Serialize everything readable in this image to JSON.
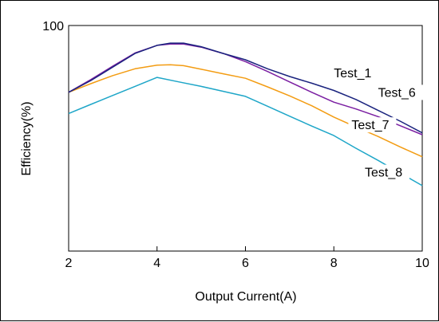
{
  "chart_data": {
    "type": "line",
    "title": "",
    "xlabel": "Output Current(A)",
    "ylabel": "Efficiency(%)",
    "xlim": [
      2,
      10
    ],
    "ylim": [
      50,
      100
    ],
    "x_ticks": [
      "2",
      "4",
      "6",
      "8",
      "10"
    ],
    "y_ticks": [
      "100"
    ],
    "grid": false,
    "series": [
      {
        "name": "Test_1",
        "color": "#1a237e",
        "x": [
          2,
          2.5,
          3,
          3.5,
          4,
          4.3,
          4.6,
          5,
          5.5,
          6,
          6.5,
          7,
          7.5,
          8,
          8.5,
          9,
          9.5,
          10
        ],
        "y": [
          85.2,
          87.8,
          90.8,
          93.8,
          95.6,
          96.1,
          96.1,
          95.3,
          93.8,
          92.4,
          90.4,
          88.7,
          87.2,
          85.6,
          83.6,
          81.2,
          78.8,
          76.2
        ]
      },
      {
        "name": "Test_6",
        "color": "#7b1fa2",
        "x": [
          2,
          2.5,
          3,
          3.5,
          4,
          4.3,
          4.6,
          5,
          5.5,
          6,
          6.5,
          7,
          7.5,
          8,
          8.5,
          9,
          9.5,
          10
        ],
        "y": [
          85.2,
          88.0,
          91.0,
          93.9,
          95.6,
          95.9,
          95.9,
          95.2,
          93.8,
          92.0,
          89.8,
          87.5,
          85.2,
          83.0,
          81.5,
          79.8,
          77.8,
          75.8
        ]
      },
      {
        "name": "Test_7",
        "color": "#f39c12",
        "x": [
          2,
          2.5,
          3,
          3.5,
          4,
          4.3,
          4.6,
          5,
          5.5,
          6,
          6.5,
          7,
          7.5,
          8,
          8.5,
          9,
          9.5,
          10
        ],
        "y": [
          85.2,
          87.1,
          88.9,
          90.4,
          91.2,
          91.3,
          91.1,
          90.3,
          89.3,
          88.3,
          86.4,
          84.4,
          82.2,
          79.7,
          77.5,
          75.4,
          73.1,
          70.9
        ]
      },
      {
        "name": "Test_8",
        "color": "#1ea6c8",
        "x": [
          2,
          2.5,
          3,
          3.5,
          4,
          4.5,
          5,
          5.5,
          6,
          6.5,
          7,
          7.5,
          8,
          8.5,
          9,
          9.5,
          10
        ],
        "y": [
          80.5,
          82.5,
          84.5,
          86.5,
          88.5,
          87.5,
          86.5,
          85.4,
          84.3,
          82.1,
          79.9,
          77.7,
          75.6,
          72.8,
          70.1,
          67.3,
          64.5
        ]
      }
    ]
  }
}
